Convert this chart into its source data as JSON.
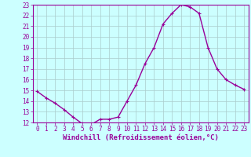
{
  "x": [
    0,
    1,
    2,
    3,
    4,
    5,
    6,
    7,
    8,
    9,
    10,
    11,
    12,
    13,
    14,
    15,
    16,
    17,
    18,
    19,
    20,
    21,
    22,
    23
  ],
  "y": [
    14.9,
    14.3,
    13.8,
    13.2,
    12.5,
    11.9,
    11.8,
    12.3,
    12.3,
    12.5,
    14.0,
    15.5,
    17.5,
    19.0,
    21.2,
    22.2,
    23.0,
    22.8,
    22.2,
    19.0,
    17.0,
    16.0,
    15.5,
    15.1
  ],
  "line_color": "#990099",
  "marker": "+",
  "marker_size": 3,
  "bg_color": "#ccffff",
  "grid_color": "#aacccc",
  "xlabel": "Windchill (Refroidissement éolien,°C)",
  "ylim": [
    12,
    23
  ],
  "xlim": [
    0,
    23
  ],
  "yticks": [
    12,
    13,
    14,
    15,
    16,
    17,
    18,
    19,
    20,
    21,
    22,
    23
  ],
  "xticks": [
    0,
    1,
    2,
    3,
    4,
    5,
    6,
    7,
    8,
    9,
    10,
    11,
    12,
    13,
    14,
    15,
    16,
    17,
    18,
    19,
    20,
    21,
    22,
    23
  ],
  "tick_fontsize": 5.5,
  "xlabel_fontsize": 6.5,
  "line_width": 1.0,
  "marker_edge_width": 0.8
}
